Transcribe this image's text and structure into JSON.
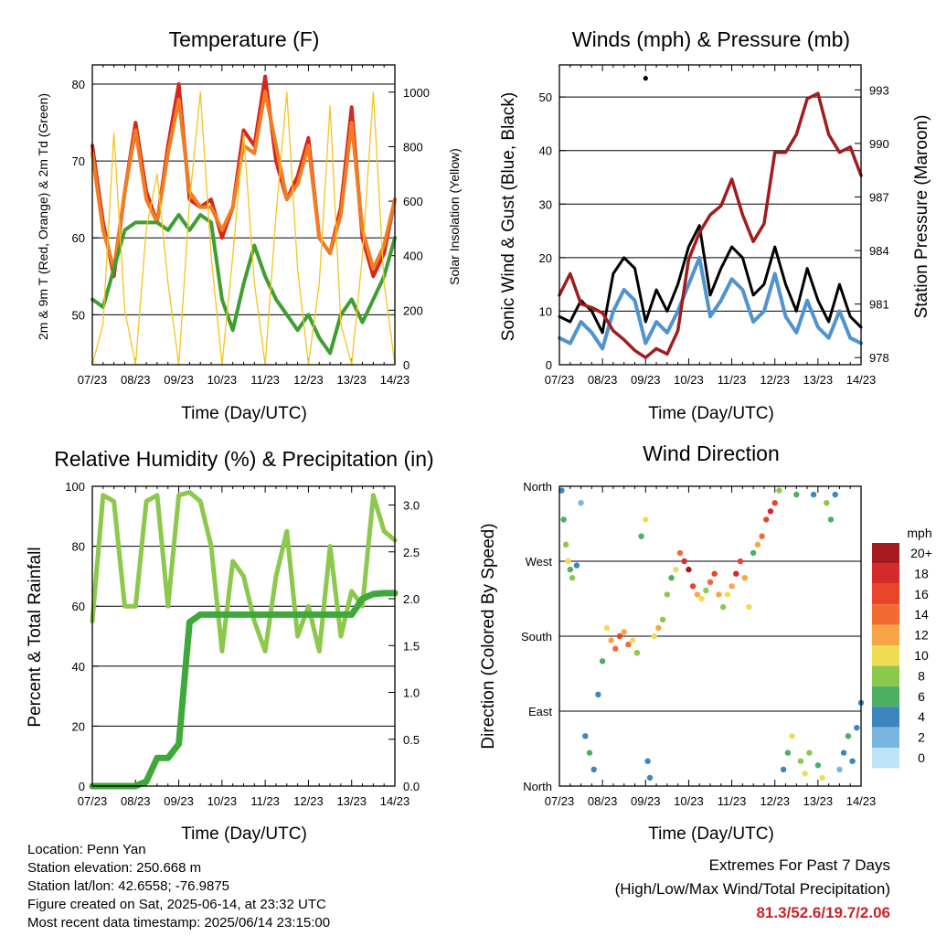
{
  "panels": {
    "temperature": {
      "title": "Temperature (F)",
      "ylabel_left": "2m & 9m T (Red, Orange) & 2m Td (Green)",
      "ylabel_right": "Solar Insolation (Yellow)",
      "xlabel": "Time (Day/UTC)"
    },
    "winds": {
      "title": "Winds (mph) & Pressure (mb)",
      "ylabel_left": "Sonic Wind & Gust (Blue, Black)",
      "ylabel_right": "Station Pressure (Maroon)",
      "xlabel": "Time (Day/UTC)"
    },
    "humidity": {
      "title": "Relative Humidity (%) & Precipitation (in)",
      "ylabel_left": "Percent & Total Rainfall",
      "xlabel": "Time (Day/UTC)"
    },
    "direction": {
      "title": "Wind Direction",
      "ylabel_left": "Direction (Colored By Speed)",
      "xlabel": "Time (Day/UTC)"
    }
  },
  "colorbar": {
    "title": "mph",
    "labels": [
      "20+",
      "18",
      "16",
      "14",
      "12",
      "10",
      "8",
      "6",
      "4",
      "2",
      "0"
    ],
    "colors": [
      "#a51a1e",
      "#d42a2a",
      "#e8452b",
      "#f36a32",
      "#f7a645",
      "#f0dc54",
      "#8cc94a",
      "#4caf62",
      "#3c86c0",
      "#78b6e2",
      "#bfe3f7"
    ]
  },
  "meta": {
    "location": "Location: Penn Yan",
    "elevation": "Station elevation: 250.668 m",
    "latlon": "Station lat/lon: 42.6558; -76.9875",
    "created": "Figure created on Sat, 2025-06-14, at 23:32 UTC",
    "recent": "Most recent data timestamp: 2025/06/14 23:15:00"
  },
  "extremes": {
    "line1": "Extremes For Past 7 Days",
    "line2": "(High/Low/Max Wind/Total Precipitation)",
    "values": "81.3/52.6/19.7/2.06"
  },
  "chart_data": [
    {
      "type": "line",
      "title": "Temperature (F)",
      "xlabel": "Time (Day/UTC)",
      "ylabel": "2m & 9m T (Red, Orange) & 2m Td (Green)",
      "y2label": "Solar Insolation (Yellow)",
      "x_ticks": [
        "07/23",
        "08/23",
        "09/23",
        "10/23",
        "11/23",
        "12/23",
        "13/23",
        "14/23"
      ],
      "x": [
        7.0,
        7.25,
        7.5,
        7.75,
        8.0,
        8.25,
        8.5,
        8.75,
        9.0,
        9.25,
        9.5,
        9.75,
        10.0,
        10.25,
        10.5,
        10.75,
        11.0,
        11.25,
        11.5,
        11.75,
        12.0,
        12.25,
        12.5,
        12.75,
        13.0,
        13.25,
        13.5,
        13.75,
        14.0
      ],
      "ylim": [
        43.5,
        82.5
      ],
      "y_ticks": [
        50,
        60,
        70,
        80
      ],
      "y2lim": [
        0,
        1100
      ],
      "y2_ticks": [
        0,
        200,
        400,
        600,
        800,
        1000
      ],
      "series": [
        {
          "name": "2m T",
          "color": "#d7261e",
          "axis": "left",
          "values": [
            72,
            62,
            55,
            66,
            75,
            66,
            62,
            72,
            80,
            65,
            64,
            65,
            60,
            64,
            74,
            72,
            81,
            70,
            65,
            68,
            73,
            60,
            58,
            64,
            77,
            60,
            55,
            58,
            65
          ]
        },
        {
          "name": "9m T",
          "color": "#f07d22",
          "axis": "left",
          "values": [
            71,
            61,
            56,
            66,
            74,
            65,
            62,
            71,
            78,
            66,
            64,
            64,
            61,
            64,
            72,
            71,
            79,
            72,
            65,
            67,
            72,
            60,
            58,
            63,
            75,
            61,
            56,
            59,
            65
          ]
        },
        {
          "name": "2m Td",
          "color": "#3f9e32",
          "axis": "left",
          "values": [
            52,
            51,
            56,
            61,
            62,
            62,
            62,
            61,
            63,
            61,
            63,
            62,
            52,
            48,
            54,
            59,
            55,
            52,
            50,
            48,
            50,
            47,
            45,
            50,
            52,
            49,
            52,
            55,
            60
          ]
        },
        {
          "name": "Solar Insolation",
          "color": "#f5c51e",
          "axis": "right",
          "values": [
            0,
            150,
            850,
            200,
            0,
            500,
            700,
            300,
            0,
            600,
            1000,
            400,
            0,
            400,
            850,
            300,
            0,
            550,
            1000,
            350,
            0,
            300,
            950,
            150,
            0,
            400,
            1000,
            300,
            0
          ]
        }
      ]
    },
    {
      "type": "line",
      "title": "Winds (mph) & Pressure (mb)",
      "xlabel": "Time (Day/UTC)",
      "ylabel": "Sonic Wind & Gust (Blue, Black)",
      "y2label": "Station Pressure (Maroon)",
      "x_ticks": [
        "07/23",
        "08/23",
        "09/23",
        "10/23",
        "11/23",
        "12/23",
        "13/23",
        "14/23"
      ],
      "x": [
        7.0,
        7.25,
        7.5,
        7.75,
        8.0,
        8.25,
        8.5,
        8.75,
        9.0,
        9.25,
        9.5,
        9.75,
        10.0,
        10.25,
        10.5,
        10.75,
        11.0,
        11.25,
        11.5,
        11.75,
        12.0,
        12.25,
        12.5,
        12.75,
        13.0,
        13.25,
        13.5,
        13.75,
        14.0
      ],
      "ylim": [
        0,
        56
      ],
      "y_ticks": [
        0,
        10,
        20,
        30,
        40,
        50
      ],
      "y2lim": [
        977.6,
        994.4
      ],
      "y2_ticks": [
        978,
        981,
        984,
        987,
        990,
        993
      ],
      "series": [
        {
          "name": "Sonic Wind",
          "color": "#4f93cf",
          "axis": "left",
          "values": [
            5,
            4,
            8,
            6,
            3,
            10,
            14,
            12,
            4,
            8,
            6,
            10,
            15,
            20,
            9,
            12,
            16,
            14,
            8,
            10,
            17,
            9,
            6,
            12,
            7,
            5,
            10,
            5,
            4
          ]
        },
        {
          "name": "Gust",
          "color": "#000000",
          "axis": "left",
          "values": [
            9,
            8,
            12,
            10,
            6,
            17,
            20,
            18,
            8,
            14,
            10,
            15,
            22,
            26,
            13,
            18,
            22,
            20,
            13,
            15,
            22,
            15,
            10,
            18,
            12,
            8,
            15,
            9,
            7
          ]
        },
        {
          "name": "Station Pressure",
          "color": "#a11c1d",
          "axis": "right",
          "values": [
            981.5,
            982.7,
            981.0,
            980.8,
            980.5,
            979.5,
            979.0,
            978.4,
            978.0,
            978.5,
            978.2,
            979.5,
            983.5,
            985.0,
            986.0,
            986.5,
            988.0,
            986.0,
            984.5,
            985.5,
            989.5,
            989.5,
            990.5,
            992.5,
            992.8,
            990.5,
            989.5,
            989.8,
            988.2
          ]
        }
      ],
      "annotations": [
        {
          "x": 9.0,
          "y": 53.5,
          "label": "max gust point"
        }
      ]
    },
    {
      "type": "line",
      "title": "Relative Humidity (%) & Precipitation (in)",
      "xlabel": "Time (Day/UTC)",
      "ylabel": "Percent & Total Rainfall",
      "x_ticks": [
        "07/23",
        "08/23",
        "09/23",
        "10/23",
        "11/23",
        "12/23",
        "13/23",
        "14/23"
      ],
      "x": [
        7.0,
        7.25,
        7.5,
        7.75,
        8.0,
        8.25,
        8.5,
        8.75,
        9.0,
        9.25,
        9.5,
        9.75,
        10.0,
        10.25,
        10.5,
        10.75,
        11.0,
        11.25,
        11.5,
        11.75,
        12.0,
        12.25,
        12.5,
        12.75,
        13.0,
        13.25,
        13.5,
        13.75,
        14.0
      ],
      "ylim": [
        0,
        100
      ],
      "y_ticks": [
        0,
        20,
        40,
        60,
        80,
        100
      ],
      "y2lim": [
        0,
        3.2
      ],
      "y2_ticks": [
        0.0,
        0.5,
        1.0,
        1.5,
        2.0,
        2.5,
        3.0
      ],
      "series": [
        {
          "name": "Relative Humidity",
          "color": "#8cc84b",
          "axis": "left",
          "values": [
            55,
            97,
            95,
            60,
            60,
            95,
            97,
            60,
            97,
            98,
            95,
            80,
            45,
            75,
            70,
            55,
            45,
            70,
            85,
            50,
            60,
            45,
            80,
            50,
            65,
            60,
            97,
            85,
            82
          ]
        },
        {
          "name": "Total Precipitation",
          "color": "#3ea93a",
          "axis": "right",
          "values": [
            0,
            0,
            0,
            0,
            0,
            0.05,
            0.3,
            0.3,
            0.45,
            1.75,
            1.83,
            1.83,
            1.83,
            1.83,
            1.83,
            1.83,
            1.83,
            1.83,
            1.83,
            1.83,
            1.83,
            1.83,
            1.83,
            1.83,
            1.83,
            2.0,
            2.05,
            2.06,
            2.06
          ]
        }
      ]
    },
    {
      "type": "scatter",
      "title": "Wind Direction",
      "xlabel": "Time (Day/UTC)",
      "ylabel": "Direction (Colored By Speed)",
      "x_ticks": [
        "07/23",
        "08/23",
        "09/23",
        "10/23",
        "11/23",
        "12/23",
        "13/23",
        "14/23"
      ],
      "ylim": [
        0,
        360
      ],
      "y_ticks": [
        "North",
        "East",
        "South",
        "West",
        "North"
      ],
      "points": [
        {
          "x": 7.05,
          "y": 355,
          "s": 3
        },
        {
          "x": 7.1,
          "y": 320,
          "s": 5
        },
        {
          "x": 7.15,
          "y": 290,
          "s": 7
        },
        {
          "x": 7.2,
          "y": 270,
          "s": 9
        },
        {
          "x": 7.25,
          "y": 260,
          "s": 6
        },
        {
          "x": 7.3,
          "y": 250,
          "s": 8
        },
        {
          "x": 7.4,
          "y": 265,
          "s": 4
        },
        {
          "x": 7.5,
          "y": 340,
          "s": 2
        },
        {
          "x": 7.6,
          "y": 60,
          "s": 4
        },
        {
          "x": 7.7,
          "y": 40,
          "s": 6
        },
        {
          "x": 7.8,
          "y": 20,
          "s": 3
        },
        {
          "x": 7.9,
          "y": 110,
          "s": 4
        },
        {
          "x": 8.0,
          "y": 150,
          "s": 5
        },
        {
          "x": 8.1,
          "y": 190,
          "s": 9
        },
        {
          "x": 8.2,
          "y": 175,
          "s": 12
        },
        {
          "x": 8.3,
          "y": 165,
          "s": 14
        },
        {
          "x": 8.4,
          "y": 180,
          "s": 16
        },
        {
          "x": 8.5,
          "y": 185,
          "s": 11
        },
        {
          "x": 8.6,
          "y": 170,
          "s": 13
        },
        {
          "x": 8.7,
          "y": 175,
          "s": 10
        },
        {
          "x": 8.8,
          "y": 160,
          "s": 8
        },
        {
          "x": 8.9,
          "y": 300,
          "s": 6
        },
        {
          "x": 9.0,
          "y": 320,
          "s": 9
        },
        {
          "x": 9.05,
          "y": 30,
          "s": 4
        },
        {
          "x": 9.1,
          "y": 10,
          "s": 3
        },
        {
          "x": 9.2,
          "y": 180,
          "s": 10
        },
        {
          "x": 9.3,
          "y": 190,
          "s": 12
        },
        {
          "x": 9.4,
          "y": 200,
          "s": 8
        },
        {
          "x": 9.5,
          "y": 230,
          "s": 7
        },
        {
          "x": 9.6,
          "y": 250,
          "s": 5
        },
        {
          "x": 9.7,
          "y": 260,
          "s": 9
        },
        {
          "x": 9.8,
          "y": 280,
          "s": 14
        },
        {
          "x": 9.9,
          "y": 270,
          "s": 18
        },
        {
          "x": 10.0,
          "y": 260,
          "s": 20
        },
        {
          "x": 10.1,
          "y": 240,
          "s": 16
        },
        {
          "x": 10.2,
          "y": 230,
          "s": 12
        },
        {
          "x": 10.3,
          "y": 225,
          "s": 10
        },
        {
          "x": 10.4,
          "y": 235,
          "s": 8
        },
        {
          "x": 10.5,
          "y": 245,
          "s": 13
        },
        {
          "x": 10.6,
          "y": 255,
          "s": 15
        },
        {
          "x": 10.7,
          "y": 230,
          "s": 11
        },
        {
          "x": 10.8,
          "y": 215,
          "s": 8
        },
        {
          "x": 10.9,
          "y": 230,
          "s": 9
        },
        {
          "x": 11.0,
          "y": 240,
          "s": 12
        },
        {
          "x": 11.1,
          "y": 255,
          "s": 17
        },
        {
          "x": 11.2,
          "y": 270,
          "s": 15
        },
        {
          "x": 11.3,
          "y": 250,
          "s": 12
        },
        {
          "x": 11.4,
          "y": 215,
          "s": 9
        },
        {
          "x": 11.5,
          "y": 280,
          "s": 6
        },
        {
          "x": 11.6,
          "y": 290,
          "s": 11
        },
        {
          "x": 11.7,
          "y": 300,
          "s": 13
        },
        {
          "x": 11.8,
          "y": 320,
          "s": 16
        },
        {
          "x": 11.9,
          "y": 330,
          "s": 18
        },
        {
          "x": 12.0,
          "y": 340,
          "s": 15
        },
        {
          "x": 12.1,
          "y": 355,
          "s": 8
        },
        {
          "x": 12.2,
          "y": 20,
          "s": 4
        },
        {
          "x": 12.3,
          "y": 40,
          "s": 6
        },
        {
          "x": 12.4,
          "y": 60,
          "s": 9
        },
        {
          "x": 12.5,
          "y": 350,
          "s": 5
        },
        {
          "x": 12.6,
          "y": 30,
          "s": 7
        },
        {
          "x": 12.7,
          "y": 15,
          "s": 10
        },
        {
          "x": 12.8,
          "y": 40,
          "s": 8
        },
        {
          "x": 12.9,
          "y": 350,
          "s": 4
        },
        {
          "x": 13.0,
          "y": 25,
          "s": 6
        },
        {
          "x": 13.1,
          "y": 10,
          "s": 9
        },
        {
          "x": 13.2,
          "y": 340,
          "s": 7
        },
        {
          "x": 13.3,
          "y": 320,
          "s": 5
        },
        {
          "x": 13.4,
          "y": 350,
          "s": 3
        },
        {
          "x": 13.5,
          "y": 20,
          "s": 2
        },
        {
          "x": 13.6,
          "y": 40,
          "s": 3
        },
        {
          "x": 13.7,
          "y": 60,
          "s": 5
        },
        {
          "x": 13.8,
          "y": 30,
          "s": 4
        },
        {
          "x": 13.9,
          "y": 70,
          "s": 3
        },
        {
          "x": 14.0,
          "y": 100,
          "s": 4
        }
      ]
    }
  ]
}
